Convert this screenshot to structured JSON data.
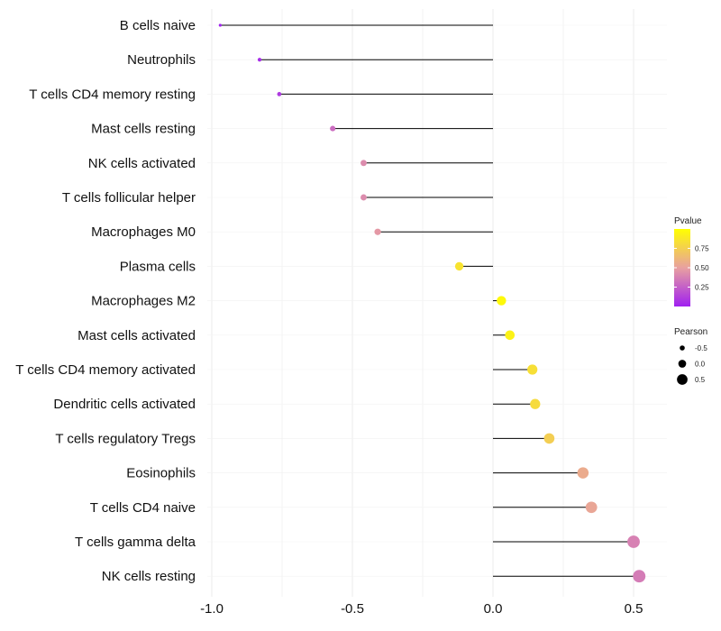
{
  "chart_data": {
    "type": "lollipop",
    "title": "",
    "xlabel": "",
    "ylabel": "",
    "xlim": [
      -1.0,
      0.6
    ],
    "xticks": [
      -1.0,
      -0.5,
      0.0,
      0.5
    ],
    "xtick_labels": [
      "-1.0",
      "-0.5",
      "0.0",
      "0.5"
    ],
    "grid": true,
    "legend_position": "right",
    "pvalue_colors": {
      "low": "#a020f0",
      "mid": "#e8a0a0",
      "high": "#ffff00"
    },
    "stem_color": "#000000",
    "points": [
      {
        "category": "B cells naive",
        "pearson": -0.97,
        "pvalue": 0.01
      },
      {
        "category": "Neutrophils",
        "pearson": -0.83,
        "pvalue": 0.05
      },
      {
        "category": "T cells CD4 memory resting",
        "pearson": -0.76,
        "pvalue": 0.1
      },
      {
        "category": "Mast cells resting",
        "pearson": -0.57,
        "pvalue": 0.3
      },
      {
        "category": "NK cells activated",
        "pearson": -0.46,
        "pvalue": 0.42
      },
      {
        "category": "T cells follicular helper",
        "pearson": -0.46,
        "pvalue": 0.42
      },
      {
        "category": "Macrophages M0",
        "pearson": -0.41,
        "pvalue": 0.47
      },
      {
        "category": "Plasma cells",
        "pearson": -0.12,
        "pvalue": 0.85
      },
      {
        "category": "Macrophages M2",
        "pearson": 0.03,
        "pvalue": 0.97
      },
      {
        "category": "Mast cells activated",
        "pearson": 0.06,
        "pvalue": 0.93
      },
      {
        "category": "T cells CD4 memory activated",
        "pearson": 0.14,
        "pvalue": 0.83
      },
      {
        "category": "Dendritic cells activated",
        "pearson": 0.15,
        "pvalue": 0.81
      },
      {
        "category": "T cells regulatory  Tregs ",
        "pearson": 0.2,
        "pvalue": 0.74
      },
      {
        "category": "Eosinophils",
        "pearson": 0.32,
        "pvalue": 0.56
      },
      {
        "category": "T cells CD4 naive",
        "pearson": 0.35,
        "pvalue": 0.53
      },
      {
        "category": "T cells gamma delta",
        "pearson": 0.5,
        "pvalue": 0.38
      },
      {
        "category": "NK cells resting",
        "pearson": 0.52,
        "pvalue": 0.36
      }
    ],
    "legends": {
      "color": {
        "title": "Pvalue",
        "ticks": [
          0.75,
          0.5,
          0.25
        ],
        "tick_labels": [
          "0.75",
          "0.50",
          "0.25"
        ],
        "range": [
          0.0,
          1.0
        ]
      },
      "size": {
        "title": "Pearson",
        "values": [
          -0.5,
          0.0,
          0.5
        ],
        "labels": [
          "-0.5",
          "0.0",
          "0.5"
        ]
      }
    }
  }
}
